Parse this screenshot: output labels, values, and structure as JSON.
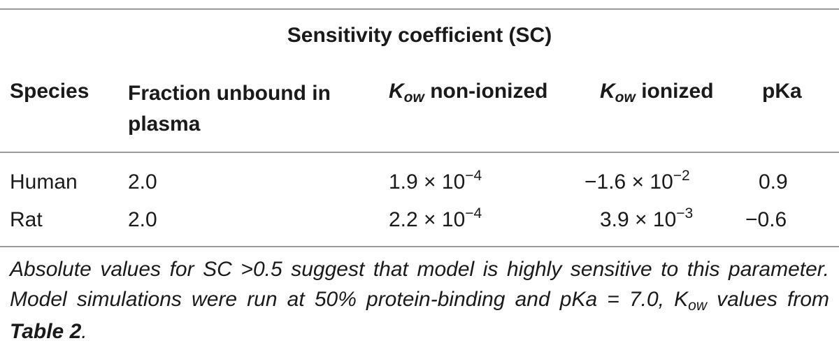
{
  "caption": "Sensitivity coefficient (SC)",
  "columns": {
    "species": "Species",
    "fraction_unbound": "Fraction unbound in plasma",
    "kow_nonionized": {
      "symbol": "K",
      "subscript": "ow",
      "text": "non-ionized"
    },
    "kow_ionized": {
      "symbol": "K",
      "subscript": "ow",
      "text": "ionized"
    },
    "pka": "pKa"
  },
  "rows": [
    {
      "species": "Human",
      "fraction_unbound": "2.0",
      "kow_nonionized": {
        "mantissa": "1.9 × 10",
        "exponent": "−4"
      },
      "kow_ionized": {
        "mantissa": "−1.6 × 10",
        "exponent": "−2"
      },
      "pka": "0.9"
    },
    {
      "species": "Rat",
      "fraction_unbound": "2.0",
      "kow_nonionized": {
        "mantissa": "2.2 × 10",
        "exponent": "−4"
      },
      "kow_ionized": {
        "mantissa": "3.9 × 10",
        "exponent": "−3"
      },
      "pka": "−0.6"
    }
  ],
  "footnote": {
    "line1": "Absolute values for SC >0.5 suggest that model is highly sensitive to this parameter. Model simulations were run at 50% protein-binding and pKa = 7.0, ",
    "kow_symbol": "K",
    "kow_subscript": "ow",
    "mid": " values from ",
    "table_ref": "Table 2",
    "end": "."
  }
}
